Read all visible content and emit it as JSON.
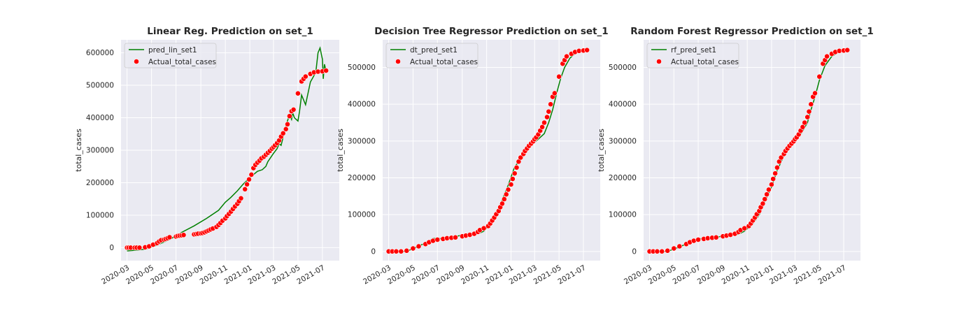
{
  "chart_data": [
    {
      "type": "line",
      "title": "Linear Reg. Prediction on set_1",
      "xlabel": "",
      "ylabel": "total_cases",
      "xlim": [
        "2020-02-15",
        "2021-08-12"
      ],
      "ylim": [
        -40000,
        640000
      ],
      "yticks": [
        0,
        100000,
        200000,
        300000,
        400000,
        500000,
        600000
      ],
      "xticks": [
        "2020-03",
        "2020-05",
        "2020-07",
        "2020-09",
        "2020-11",
        "2021-01",
        "2021-03",
        "2021-05",
        "2021-07"
      ],
      "grid": true,
      "legend_position": "top-left",
      "line": {
        "name": "pred_lin_set1",
        "color": "#008000",
        "x": [
          "2020-03-01",
          "2020-04-15",
          "2020-05-15",
          "2020-06-15",
          "2020-07-15",
          "2020-08-15",
          "2020-09-15",
          "2020-10-15",
          "2020-11-01",
          "2020-11-15",
          "2020-12-01",
          "2020-12-15",
          "2021-01-01",
          "2021-01-10",
          "2021-01-20",
          "2021-02-01",
          "2021-02-10",
          "2021-02-15",
          "2021-03-01",
          "2021-03-10",
          "2021-03-15",
          "2021-03-20",
          "2021-03-25",
          "2021-04-01",
          "2021-04-10",
          "2021-04-15",
          "2021-04-18",
          "2021-04-22",
          "2021-05-01",
          "2021-05-05",
          "2021-05-10",
          "2021-05-20",
          "2021-06-01",
          "2021-06-10",
          "2021-06-15",
          "2021-06-20",
          "2021-06-25",
          "2021-07-01",
          "2021-07-03",
          "2021-07-06",
          "2021-07-08",
          "2021-07-12"
        ],
        "y": [
          -10000,
          -5000,
          8000,
          25000,
          47000,
          67000,
          90000,
          115000,
          140000,
          155000,
          175000,
          195000,
          215000,
          225000,
          235000,
          240000,
          250000,
          265000,
          290000,
          305000,
          320000,
          315000,
          340000,
          375000,
          410000,
          395000,
          415000,
          400000,
          390000,
          420000,
          470000,
          440000,
          510000,
          530000,
          545000,
          600000,
          615000,
          580000,
          520000,
          565000,
          555000,
          540000
        ]
      },
      "scatter": {
        "name": "Actual_total_cases",
        "color": "#ff0000",
        "x": [
          "2020-03-01",
          "2020-03-05",
          "2020-03-10",
          "2020-03-20",
          "2020-03-25",
          "2020-04-01",
          "2020-04-15",
          "2020-04-25",
          "2020-05-05",
          "2020-05-15",
          "2020-05-20",
          "2020-05-25",
          "2020-06-01",
          "2020-06-05",
          "2020-06-10",
          "2020-06-15",
          "2020-07-01",
          "2020-07-05",
          "2020-07-10",
          "2020-07-15",
          "2020-07-20",
          "2020-08-15",
          "2020-08-20",
          "2020-08-25",
          "2020-09-01",
          "2020-09-05",
          "2020-09-10",
          "2020-09-15",
          "2020-09-20",
          "2020-09-25",
          "2020-10-01",
          "2020-10-10",
          "2020-10-15",
          "2020-10-20",
          "2020-10-25",
          "2020-11-01",
          "2020-11-05",
          "2020-11-10",
          "2020-11-15",
          "2020-11-20",
          "2020-11-25",
          "2020-12-01",
          "2020-12-05",
          "2020-12-10",
          "2020-12-20",
          "2020-12-25",
          "2020-12-30",
          "2021-01-05",
          "2021-01-10",
          "2021-01-15",
          "2021-01-20",
          "2021-01-25",
          "2021-01-30",
          "2021-02-05",
          "2021-02-10",
          "2021-02-15",
          "2021-02-20",
          "2021-02-25",
          "2021-03-01",
          "2021-03-05",
          "2021-03-10",
          "2021-03-15",
          "2021-03-20",
          "2021-03-25",
          "2021-04-01",
          "2021-04-05",
          "2021-04-10",
          "2021-04-15",
          "2021-04-20",
          "2021-05-01",
          "2021-05-10",
          "2021-05-15",
          "2021-05-20",
          "2021-06-01",
          "2021-06-10",
          "2021-06-20",
          "2021-07-01",
          "2021-07-10"
        ],
        "y": [
          0,
          0,
          0,
          0,
          0,
          0,
          1000,
          4000,
          9000,
          14000,
          19000,
          23000,
          25000,
          27000,
          29000,
          32000,
          34000,
          36000,
          37000,
          38000,
          39000,
          41000,
          42000,
          43000,
          44000,
          45000,
          47000,
          50000,
          53000,
          56000,
          59000,
          64000,
          70000,
          76000,
          83000,
          90000,
          97000,
          104000,
          111000,
          119000,
          127000,
          135000,
          143000,
          152000,
          180000,
          195000,
          210000,
          225000,
          245000,
          255000,
          262000,
          268000,
          275000,
          280000,
          286000,
          292000,
          298000,
          305000,
          310000,
          315000,
          322000,
          330000,
          342000,
          352000,
          365000,
          380000,
          405000,
          420000,
          425000,
          475000,
          512000,
          520000,
          527000,
          535000,
          540000,
          542000,
          543000,
          545000
        ]
      }
    },
    {
      "type": "line",
      "title": "Decision Tree Regressor Prediction on set_1",
      "xlabel": "",
      "ylabel": "total_cases",
      "xlim": [
        "2020-02-15",
        "2021-08-12"
      ],
      "ylim": [
        -25000,
        575000
      ],
      "yticks": [
        0,
        100000,
        200000,
        300000,
        400000,
        500000
      ],
      "xticks": [
        "2020-03",
        "2020-05",
        "2020-07",
        "2020-09",
        "2020-11",
        "2021-01",
        "2021-03",
        "2021-05",
        "2021-07"
      ],
      "grid": true,
      "legend_position": "top-left",
      "line": {
        "name": "dt_pred_set1",
        "color": "#008000",
        "x": [
          "2020-03-01",
          "2020-04-15",
          "2020-05-10",
          "2020-06-05",
          "2020-06-20",
          "2020-07-10",
          "2020-08-15",
          "2020-09-01",
          "2020-09-20",
          "2020-10-10",
          "2020-10-25",
          "2020-11-15",
          "2020-12-01",
          "2020-12-10",
          "2020-12-25",
          "2021-01-10",
          "2021-01-25",
          "2021-02-05",
          "2021-02-08",
          "2021-02-20",
          "2021-03-10",
          "2021-03-25",
          "2021-04-05",
          "2021-04-15",
          "2021-04-25",
          "2021-05-05",
          "2021-05-15",
          "2021-05-28",
          "2021-06-10",
          "2021-06-25",
          "2021-07-10"
        ],
        "y": [
          0,
          0,
          12000,
          25000,
          35000,
          35000,
          40000,
          45000,
          45000,
          48000,
          55000,
          80000,
          110000,
          140000,
          180000,
          230000,
          250000,
          265000,
          275000,
          288000,
          305000,
          320000,
          350000,
          385000,
          430000,
          470000,
          500000,
          525000,
          538000,
          545000,
          547000
        ]
      },
      "scatter": {
        "name": "Actual_total_cases",
        "color": "#ff0000",
        "x": [
          "2020-03-01",
          "2020-03-10",
          "2020-03-20",
          "2020-04-01",
          "2020-04-15",
          "2020-05-01",
          "2020-05-15",
          "2020-06-01",
          "2020-06-10",
          "2020-06-20",
          "2020-07-01",
          "2020-07-15",
          "2020-07-25",
          "2020-08-05",
          "2020-08-15",
          "2020-09-01",
          "2020-09-10",
          "2020-09-20",
          "2020-10-01",
          "2020-10-10",
          "2020-10-15",
          "2020-10-25",
          "2020-11-05",
          "2020-11-10",
          "2020-11-15",
          "2020-11-20",
          "2020-11-25",
          "2020-12-01",
          "2020-12-05",
          "2020-12-10",
          "2020-12-15",
          "2020-12-20",
          "2020-12-25",
          "2021-01-01",
          "2021-01-05",
          "2021-01-10",
          "2021-01-15",
          "2021-01-20",
          "2021-01-25",
          "2021-02-01",
          "2021-02-05",
          "2021-02-10",
          "2021-02-15",
          "2021-02-20",
          "2021-02-25",
          "2021-03-01",
          "2021-03-05",
          "2021-03-10",
          "2021-03-15",
          "2021-03-20",
          "2021-03-25",
          "2021-04-01",
          "2021-04-05",
          "2021-04-10",
          "2021-04-15",
          "2021-04-20",
          "2021-05-01",
          "2021-05-10",
          "2021-05-15",
          "2021-05-20",
          "2021-06-01",
          "2021-06-10",
          "2021-06-20",
          "2021-07-01",
          "2021-07-10"
        ],
        "y": [
          0,
          0,
          0,
          0,
          2000,
          8000,
          14000,
          20000,
          25000,
          29000,
          32000,
          34000,
          36000,
          37000,
          38000,
          41000,
          43000,
          45000,
          48000,
          53000,
          58000,
          63000,
          69000,
          76000,
          84000,
          92000,
          101000,
          110000,
          120000,
          130000,
          142000,
          155000,
          168000,
          182000,
          197000,
          212000,
          228000,
          244000,
          255000,
          265000,
          273000,
          280000,
          287000,
          293000,
          299000,
          305000,
          310000,
          318000,
          328000,
          338000,
          350000,
          365000,
          380000,
          400000,
          420000,
          430000,
          475000,
          510000,
          520000,
          530000,
          537000,
          542000,
          545000,
          546000,
          547000
        ]
      }
    },
    {
      "type": "line",
      "title": "Random Forest Regressor Prediction on set_1",
      "xlabel": "",
      "ylabel": "total_cases",
      "xlim": [
        "2020-02-15",
        "2021-08-12"
      ],
      "ylim": [
        -25000,
        575000
      ],
      "yticks": [
        0,
        100000,
        200000,
        300000,
        400000,
        500000
      ],
      "xticks": [
        "2020-03",
        "2020-05",
        "2020-07",
        "2020-09",
        "2020-11",
        "2021-01",
        "2021-03",
        "2021-05",
        "2021-07"
      ],
      "grid": true,
      "legend_position": "top-left",
      "line": {
        "name": "rf_pred_set1",
        "color": "#008000",
        "x": [
          "2020-03-01",
          "2020-04-15",
          "2020-05-10",
          "2020-06-05",
          "2020-06-20",
          "2020-07-10",
          "2020-08-15",
          "2020-09-01",
          "2020-09-20",
          "2020-10-10",
          "2020-10-25",
          "2020-11-15",
          "2020-12-01",
          "2020-12-15",
          "2021-01-01",
          "2021-01-15",
          "2021-02-01",
          "2021-02-15",
          "2021-03-01",
          "2021-03-15",
          "2021-04-01",
          "2021-04-10",
          "2021-04-20",
          "2021-05-01",
          "2021-05-15",
          "2021-06-01",
          "2021-06-15",
          "2021-07-01",
          "2021-07-10"
        ],
        "y": [
          0,
          0,
          10000,
          22000,
          32000,
          35000,
          38000,
          42000,
          44000,
          47000,
          55000,
          75000,
          100000,
          135000,
          175000,
          220000,
          260000,
          285000,
          300000,
          318000,
          350000,
          385000,
          420000,
          465000,
          505000,
          530000,
          540000,
          545000,
          547000
        ]
      },
      "scatter": {
        "name": "Actual_total_cases",
        "color": "#ff0000",
        "x": [
          "2020-03-01",
          "2020-03-10",
          "2020-03-20",
          "2020-04-01",
          "2020-04-15",
          "2020-05-01",
          "2020-05-15",
          "2020-06-01",
          "2020-06-10",
          "2020-06-20",
          "2020-07-01",
          "2020-07-15",
          "2020-07-25",
          "2020-08-05",
          "2020-08-15",
          "2020-09-01",
          "2020-09-10",
          "2020-09-20",
          "2020-10-01",
          "2020-10-10",
          "2020-10-15",
          "2020-10-25",
          "2020-11-05",
          "2020-11-10",
          "2020-11-15",
          "2020-11-20",
          "2020-11-25",
          "2020-12-01",
          "2020-12-05",
          "2020-12-10",
          "2020-12-15",
          "2020-12-20",
          "2020-12-25",
          "2021-01-01",
          "2021-01-05",
          "2021-01-10",
          "2021-01-15",
          "2021-01-20",
          "2021-01-25",
          "2021-02-01",
          "2021-02-05",
          "2021-02-10",
          "2021-02-15",
          "2021-02-20",
          "2021-02-25",
          "2021-03-01",
          "2021-03-05",
          "2021-03-10",
          "2021-03-15",
          "2021-03-20",
          "2021-03-25",
          "2021-04-01",
          "2021-04-05",
          "2021-04-10",
          "2021-04-15",
          "2021-04-20",
          "2021-05-01",
          "2021-05-10",
          "2021-05-15",
          "2021-05-20",
          "2021-06-01",
          "2021-06-10",
          "2021-06-20",
          "2021-07-01",
          "2021-07-10"
        ],
        "y": [
          0,
          0,
          0,
          0,
          2000,
          8000,
          14000,
          20000,
          25000,
          29000,
          32000,
          34000,
          36000,
          37000,
          38000,
          41000,
          43000,
          45000,
          48000,
          53000,
          58000,
          63000,
          69000,
          76000,
          84000,
          92000,
          101000,
          110000,
          120000,
          130000,
          142000,
          155000,
          168000,
          182000,
          197000,
          212000,
          228000,
          244000,
          255000,
          265000,
          273000,
          280000,
          287000,
          293000,
          299000,
          305000,
          310000,
          318000,
          328000,
          338000,
          350000,
          365000,
          380000,
          400000,
          420000,
          430000,
          475000,
          510000,
          520000,
          530000,
          537000,
          542000,
          545000,
          546000,
          547000
        ]
      }
    }
  ]
}
